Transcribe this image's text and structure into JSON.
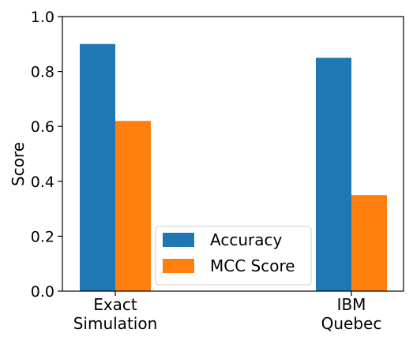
{
  "chart_data": {
    "type": "bar",
    "categories": [
      [
        "Exact",
        "Simulation"
      ],
      [
        "IBM",
        "Quebec"
      ]
    ],
    "series": [
      {
        "name": "Accuracy",
        "color": "#1f77b4",
        "values": [
          0.9,
          0.85
        ]
      },
      {
        "name": "MCC Score",
        "color": "#ff7f0e",
        "values": [
          0.62,
          0.35
        ]
      }
    ],
    "xlabel": "",
    "ylabel": "Score",
    "ylim": [
      0.0,
      1.0
    ],
    "yticks": [
      "0.0",
      "0.2",
      "0.4",
      "0.6",
      "0.8",
      "1.0"
    ],
    "legend_position": "lower-center",
    "grid": false
  }
}
